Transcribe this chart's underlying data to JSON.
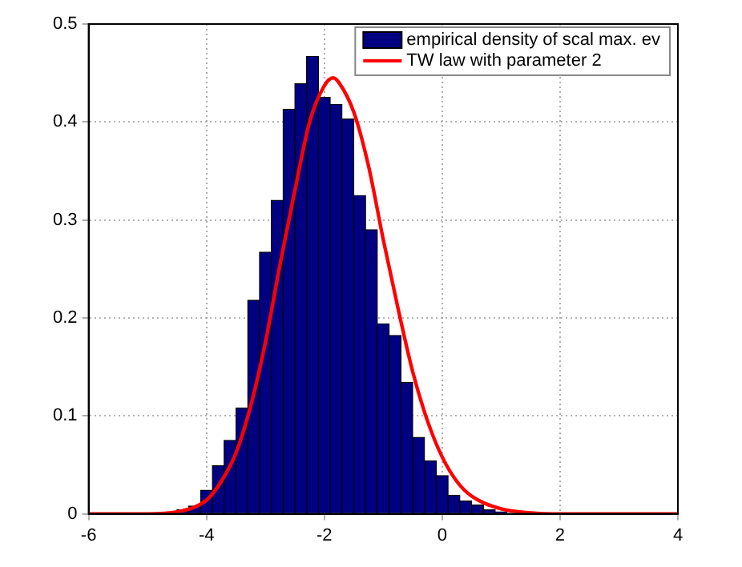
{
  "chart_data": {
    "type": "histogram",
    "bins": [
      -4.5,
      -4.3,
      -4.1,
      -3.9,
      -3.7,
      -3.5,
      -3.3,
      -3.1,
      -2.9,
      -2.7,
      -2.5,
      -2.3,
      -2.1,
      -1.9,
      -1.7,
      -1.5,
      -1.3,
      -1.1,
      -0.9,
      -0.7,
      -0.5,
      -0.3,
      -0.1,
      0.1,
      0.3,
      0.5,
      0.7,
      0.9,
      1.1
    ],
    "series": [
      {
        "name": "empirical density of scal max. ev",
        "type": "histogram",
        "color": "#000080",
        "values": [
          0.004,
          0.008,
          0.024,
          0.049,
          0.075,
          0.108,
          0.218,
          0.267,
          0.32,
          0.413,
          0.439,
          0.467,
          0.425,
          0.418,
          0.403,
          0.325,
          0.29,
          0.194,
          0.182,
          0.134,
          0.078,
          0.054,
          0.039,
          0.019,
          0.013,
          0.009,
          0.004,
          0.002
        ]
      },
      {
        "name": "TW law with parameter 2",
        "type": "line",
        "color": "#ff0000",
        "x": [
          -6,
          -5,
          -4.5,
          -4,
          -3.75,
          -3.5,
          -3.25,
          -3,
          -2.75,
          -2.5,
          -2.25,
          -2,
          -1.85,
          -1.75,
          -1.5,
          -1.25,
          -1,
          -0.75,
          -0.5,
          -0.25,
          0,
          0.25,
          0.5,
          1,
          1.5,
          2,
          3,
          4
        ],
        "values": [
          0,
          0,
          0.002,
          0.014,
          0.033,
          0.062,
          0.11,
          0.175,
          0.255,
          0.33,
          0.4,
          0.437,
          0.445,
          0.44,
          0.41,
          0.355,
          0.28,
          0.21,
          0.145,
          0.095,
          0.058,
          0.033,
          0.018,
          0.005,
          0.001,
          0,
          0,
          0
        ]
      }
    ],
    "xlim": [
      -6,
      4
    ],
    "xticks": [
      -6,
      -4,
      -2,
      0,
      2,
      4
    ],
    "ylim": [
      0,
      0.5
    ],
    "yticks": [
      0,
      0.1,
      0.2,
      0.3,
      0.4,
      0.5
    ],
    "grid": true,
    "legend": "top right",
    "line_style": "solid",
    "marker": "none"
  }
}
